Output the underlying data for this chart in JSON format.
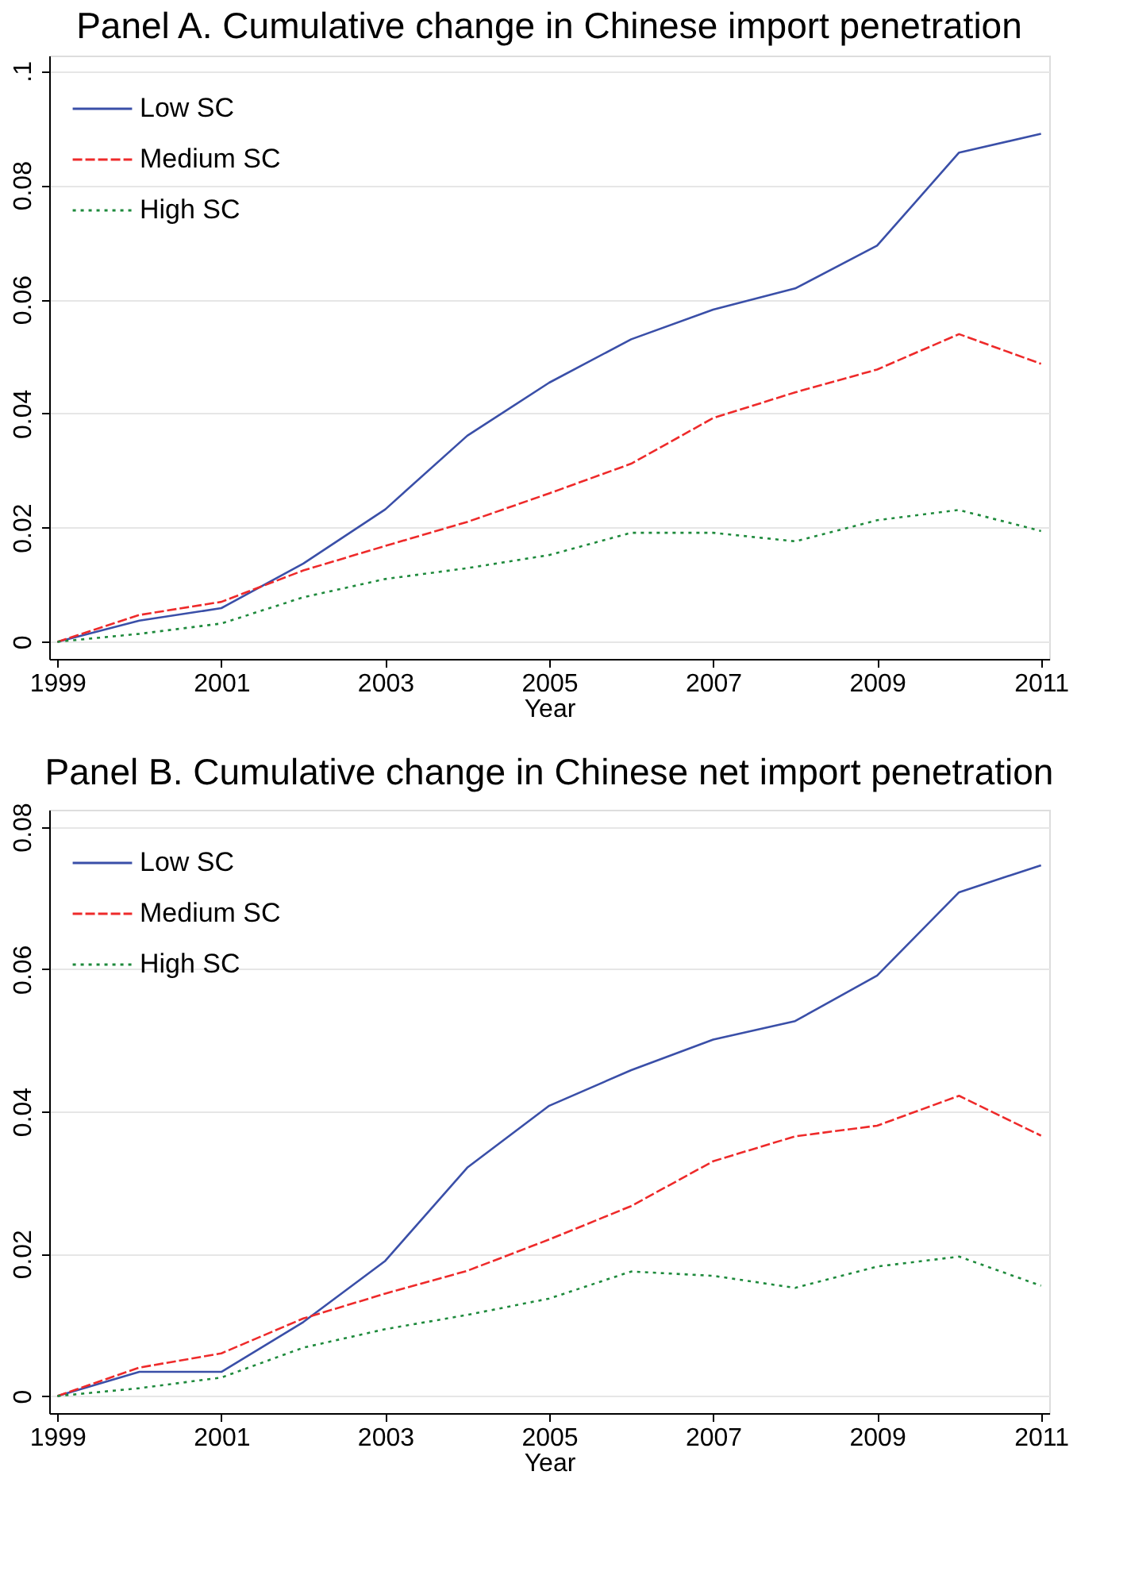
{
  "chart_data": [
    {
      "type": "line",
      "title": "Panel A. Cumulative change in Chinese import penetration",
      "xlabel": "Year",
      "x": [
        1999,
        2000,
        2001,
        2002,
        2003,
        2004,
        2005,
        2006,
        2007,
        2008,
        2009,
        2010,
        2011
      ],
      "series": [
        {
          "name": "Low SC",
          "color": "#3a4fa8",
          "line_style": "solid",
          "values": [
            0,
            0.0037,
            0.0059,
            0.0137,
            0.0232,
            0.0361,
            0.0454,
            0.053,
            0.0582,
            0.0619,
            0.0694,
            0.0857,
            0.089
          ]
        },
        {
          "name": "Medium SC",
          "color": "#ee2a2a",
          "line_style": "dashed",
          "values": [
            0,
            0.0047,
            0.007,
            0.0125,
            0.0168,
            0.021,
            0.026,
            0.0312,
            0.0392,
            0.0437,
            0.0477,
            0.0539,
            0.0487
          ]
        },
        {
          "name": "High SC",
          "color": "#1e8a3c",
          "line_style": "dotted",
          "values": [
            0,
            0.0014,
            0.0032,
            0.0078,
            0.011,
            0.0129,
            0.0152,
            0.0191,
            0.0191,
            0.0176,
            0.0213,
            0.0231,
            0.0194
          ]
        }
      ],
      "xlim": [
        1998.9,
        2011.1
      ],
      "xticks": [
        1999,
        2001,
        2003,
        2005,
        2007,
        2009,
        2011
      ],
      "ylim": [
        -0.003,
        0.1027
      ],
      "yticks": [
        0,
        0.02,
        0.04,
        0.06,
        0.08,
        {
          "value": 0.1,
          "label": ".1"
        }
      ],
      "grid": "y",
      "legend": "top left",
      "marker": "none"
    },
    {
      "type": "line",
      "title": "Panel B. Cumulative change in Chinese net import penetration",
      "xlabel": "Year",
      "x": [
        1999,
        2000,
        2001,
        2002,
        2003,
        2004,
        2005,
        2006,
        2007,
        2008,
        2009,
        2010,
        2011
      ],
      "series": [
        {
          "name": "Low SC",
          "color": "#3a4fa8",
          "line_style": "solid",
          "values": [
            0,
            0.0034,
            0.0034,
            0.0104,
            0.019,
            0.0321,
            0.0408,
            0.0458,
            0.0501,
            0.0527,
            0.0591,
            0.0708,
            0.0746
          ]
        },
        {
          "name": "Medium SC",
          "color": "#ee2a2a",
          "line_style": "dashed",
          "values": [
            0,
            0.004,
            0.006,
            0.0109,
            0.0144,
            0.0176,
            0.022,
            0.0267,
            0.033,
            0.0365,
            0.038,
            0.0422,
            0.0366
          ]
        },
        {
          "name": "High SC",
          "color": "#1e8a3c",
          "line_style": "dotted",
          "values": [
            0,
            0.0011,
            0.0026,
            0.0068,
            0.0094,
            0.0114,
            0.0137,
            0.0175,
            0.0169,
            0.0152,
            0.0182,
            0.0196,
            0.0155
          ]
        }
      ],
      "xlim": [
        1998.9,
        2011.1
      ],
      "xticks": [
        1999,
        2001,
        2003,
        2005,
        2007,
        2009,
        2011
      ],
      "ylim": [
        -0.0024,
        0.0824
      ],
      "yticks": [
        0,
        0.02,
        0.04,
        0.06,
        0.08
      ],
      "grid": "y",
      "legend": "top left",
      "marker": "none"
    }
  ]
}
